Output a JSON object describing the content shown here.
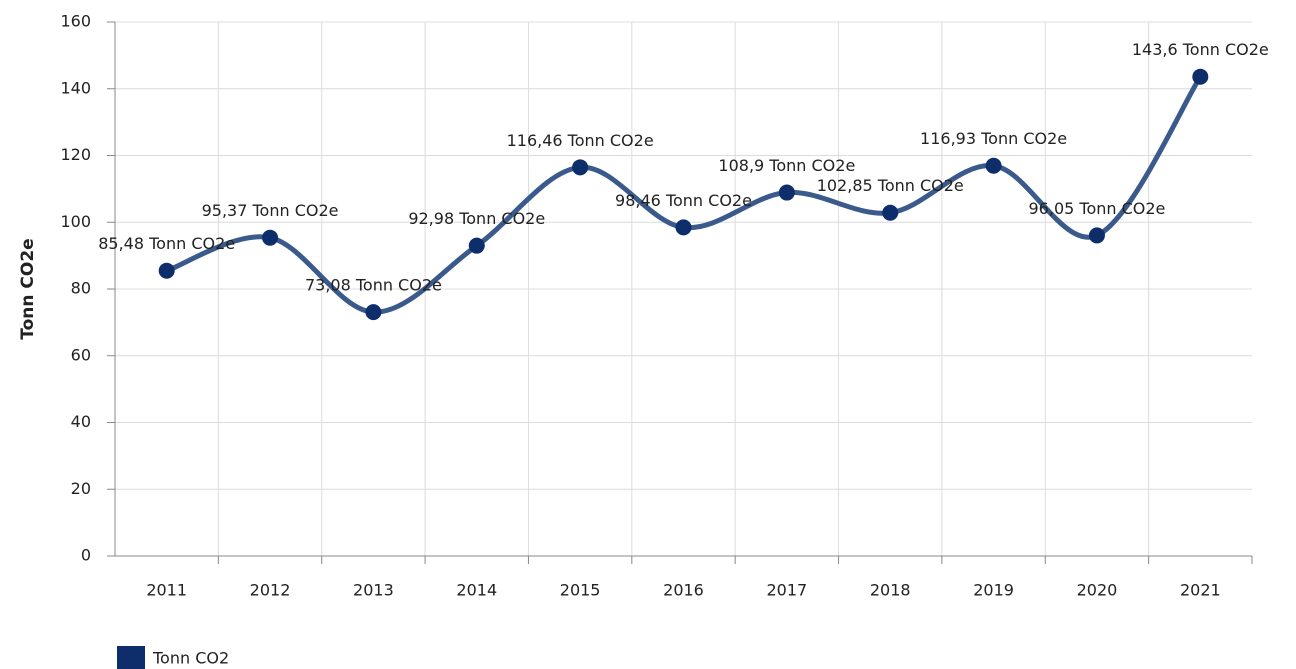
{
  "chart_data": {
    "type": "line",
    "y_label": "Tonn CO2e",
    "categories": [
      "2011",
      "2012",
      "2013",
      "2014",
      "2015",
      "2016",
      "2017",
      "2018",
      "2019",
      "2020",
      "2021"
    ],
    "series": [
      {
        "name": "Tonn CO2",
        "color": "#0d2d6b",
        "line_color": "#3b5a8c",
        "values": [
          85.48,
          95.37,
          73.08,
          92.98,
          116.46,
          98.46,
          108.9,
          102.85,
          116.93,
          96.05,
          143.6
        ],
        "value_labels": [
          "85,48 Tonn CO2e",
          "95,37 Tonn CO2e",
          "73,08 Tonn CO2e",
          "92,98 Tonn CO2e",
          "116,46 Tonn CO2e",
          "98,46 Tonn CO2e",
          "108,9 Tonn CO2e",
          "102,85 Tonn CO2e",
          "116,93 Tonn CO2e",
          "96,05 Tonn CO2e",
          "143,6 Tonn CO2e"
        ]
      }
    ],
    "ylim": [
      0,
      160
    ],
    "yticks": [
      0,
      20,
      40,
      60,
      80,
      100,
      120,
      140,
      160
    ],
    "grid": true,
    "smooth": true,
    "legend": "bottom-left"
  }
}
